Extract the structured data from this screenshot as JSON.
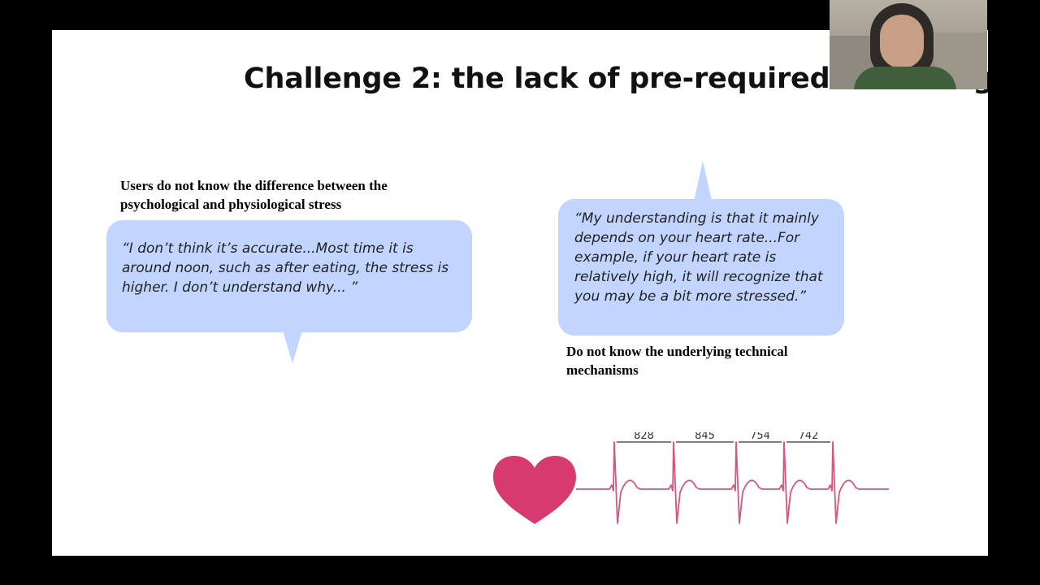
{
  "slide": {
    "title": "Challenge 2: the lack of pre-required knowledge",
    "left_label": "Users do not know the difference between the psychological and physiological  stress",
    "left_quote": "“I don’t think it’s accurate...Most time it is around noon, such as after eating, the stress is higher. I don’t understand why... ”",
    "right_quote": "“My understanding is that it mainly depends on your heart rate...For example, if your heart rate is relatively high, it will recognize that you may be a bit more stressed.”",
    "right_label": "Do not know the underlying technical mechanisms"
  },
  "ecg_intervals": [
    "828",
    "845",
    "754",
    "742"
  ],
  "icons": {
    "heart": "heart-icon",
    "ecg": "ecg-waveform"
  },
  "colors": {
    "background": "#000000",
    "slide": "#ffffff",
    "bubble": "#c1d5ff",
    "heart": "#d63a6e",
    "ecg_line": "#d4587c"
  }
}
